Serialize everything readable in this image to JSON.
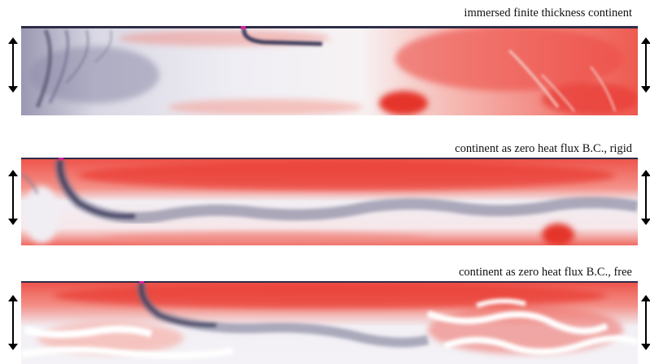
{
  "panels": [
    {
      "caption": "immersed finite thickness continent"
    },
    {
      "caption": "continent as zero heat flux B.C., rigid"
    },
    {
      "caption": "continent as zero heat flux B.C., free"
    }
  ],
  "colors": {
    "hot": "#e8362e",
    "warm": "#f7b0aa",
    "neutral": "#f4f3f7",
    "cold": "#6e6d8c",
    "coldest": "#3b3a5a",
    "marker": "#d3249a"
  },
  "icons": {
    "left_arrow": "double-headed-vertical-arrow-icon",
    "right_arrow": "double-headed-vertical-arrow-icon"
  }
}
